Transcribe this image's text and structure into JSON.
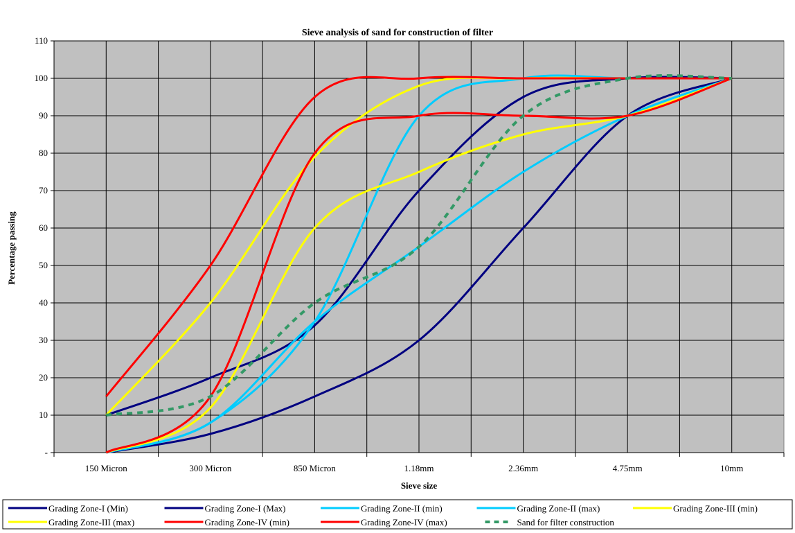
{
  "chart_data": {
    "type": "line",
    "title": "Sieve analysis of sand for construction of filter",
    "xlabel": "Sieve size",
    "ylabel": "Percentage passing",
    "categories": [
      "150 Micron",
      "300 Micron",
      "850 Micron",
      "1.18mm",
      "2.36mm",
      "4.75mm",
      "10mm"
    ],
    "yticks": [
      "-",
      "10",
      "20",
      "30",
      "40",
      "50",
      "60",
      "70",
      "80",
      "90",
      "100",
      "110"
    ],
    "ylim": [
      0,
      110
    ],
    "grid": true,
    "plot_background": "#c0c0c0",
    "legend_position": "bottom",
    "series": [
      {
        "name": "Grading Zone-I (Min)",
        "color": "#000080",
        "style": "solid",
        "values": [
          0,
          5,
          15,
          30,
          60,
          90,
          100
        ]
      },
      {
        "name": "Grading Zone-I (Max)",
        "color": "#000080",
        "style": "solid",
        "values": [
          10,
          20,
          34,
          70,
          95,
          100,
          100
        ]
      },
      {
        "name": "Grading Zone-II (min)",
        "color": "#00ccff",
        "style": "solid",
        "values": [
          0,
          8,
          35,
          90,
          100,
          100,
          100
        ]
      },
      {
        "name": "Grading Zone-II (max)",
        "color": "#00ccff",
        "style": "solid",
        "values": [
          0,
          8,
          35,
          55,
          75,
          90,
          100
        ]
      },
      {
        "name": "Grading Zone-III (min)",
        "color": "#ffff00",
        "style": "solid",
        "values": [
          10,
          40,
          79,
          98,
          100,
          100,
          100
        ]
      },
      {
        "name": "Grading Zone-III (max)",
        "color": "#ffff00",
        "style": "solid",
        "values": [
          0,
          12,
          60,
          75,
          85,
          90,
          100
        ]
      },
      {
        "name": "Grading Zone-IV (min)",
        "color": "#ff0000",
        "style": "solid",
        "values": [
          0,
          15,
          80,
          90,
          90,
          90,
          100
        ]
      },
      {
        "name": "Grading Zone-IV (max)",
        "color": "#ff0000",
        "style": "solid",
        "values": [
          15,
          50,
          95,
          100,
          100,
          100,
          100
        ]
      },
      {
        "name": "Sand for filter construction",
        "color": "#339966",
        "style": "dashed",
        "values": [
          10,
          15,
          40,
          55,
          90,
          100,
          100
        ]
      }
    ]
  }
}
